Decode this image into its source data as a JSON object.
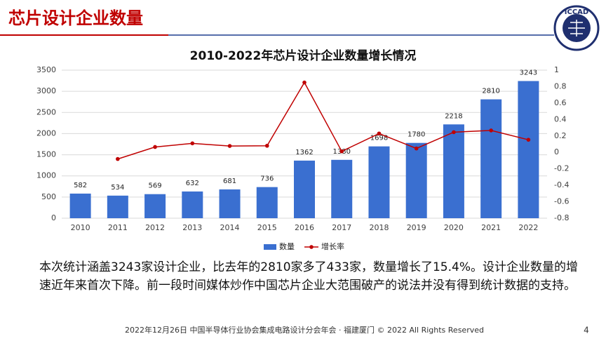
{
  "header": {
    "title": "芯片设计企业数量",
    "logo": "ICCAD"
  },
  "chart_data": {
    "type": "bar",
    "title": "2010-2022年芯片设计企业数量增长情况",
    "categories": [
      "2010",
      "2011",
      "2012",
      "2013",
      "2014",
      "2015",
      "2016",
      "2017",
      "2018",
      "2019",
      "2020",
      "2021",
      "2022"
    ],
    "series": [
      {
        "name": "数量",
        "color": "#3a6fd0",
        "values": [
          582,
          534,
          569,
          632,
          681,
          736,
          1362,
          1380,
          1698,
          1780,
          2218,
          2810,
          3243
        ]
      },
      {
        "name": "增长率",
        "color": "#c00000",
        "axis": "y2",
        "type": "line",
        "values": [
          null,
          -0.08,
          0.066,
          0.11,
          0.078,
          0.081,
          0.85,
          0.013,
          0.23,
          0.048,
          0.246,
          0.267,
          0.154
        ]
      }
    ],
    "ylim": [
      0,
      3500
    ],
    "yticks": [
      0,
      500,
      1000,
      1500,
      2000,
      2500,
      3000,
      3500
    ],
    "y2lim": [
      -0.8,
      1
    ],
    "y2ticks": [
      -0.8,
      -0.6,
      -0.4,
      -0.2,
      0,
      0.2,
      0.4,
      0.6,
      0.8,
      1
    ],
    "grid": true,
    "legend": "bottom"
  },
  "text": "本次统计涵盖3243家设计企业，比去年的2810家多了433家，数量增长了15.4%。设计企业数量的增速近年来首次下降。前一段时间媒体炒作中国芯片企业大范围破产的说法并没有得到统计数据的支持。",
  "footer": "2022年12月26日 中国半导体行业协会集成电路设计分会年会 · 福建厦门 © 2022 All Rights Reserved",
  "page_number": "4"
}
